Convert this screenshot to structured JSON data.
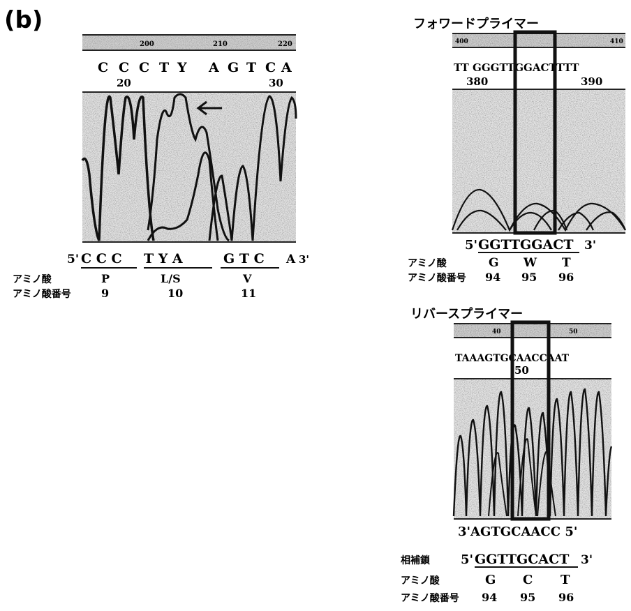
{
  "panel_label": "(b)",
  "left": {
    "ruler_ticks": [
      "200",
      "210",
      "220"
    ],
    "bases": [
      "C",
      "C",
      "C",
      "T",
      "Y",
      "A",
      "G",
      "T",
      "C",
      "A"
    ],
    "positions": [
      "20",
      "30"
    ],
    "seq_prefix": "5'",
    "seq_codons": [
      "C C C",
      "T Y A",
      "G T C"
    ],
    "seq_tail": "A",
    "seq_suffix": "3'",
    "amino_label": "アミノ酸",
    "amino_values": [
      "P",
      "L/S",
      "V"
    ],
    "number_label": "アミノ酸番号",
    "number_values": [
      "9",
      "10",
      "11"
    ]
  },
  "forward": {
    "title": "フォワードプライマー",
    "ruler_ticks": [
      "400",
      "410"
    ],
    "bases_text": "TT GGGTTGGACTTTT",
    "positions": [
      "380",
      "390"
    ],
    "seq_prefix": "5'",
    "seq": "GGTTGGACT",
    "seq_suffix": "3'",
    "amino_label": "アミノ酸",
    "amino_values": [
      "G",
      "W",
      "T"
    ],
    "number_label": "アミノ酸番号",
    "number_values": [
      "94",
      "95",
      "96"
    ]
  },
  "reverse": {
    "title": "リバースプライマー",
    "ruler_ticks": [
      "40",
      "50"
    ],
    "bases_text": "TAAAGTGCAACCAAT",
    "positions": [
      "50"
    ],
    "seq": "3'AGTGCAACC 5'",
    "comp_label": "相補鎖",
    "comp_prefix": "5'",
    "comp_seq": "GGTTGCACT",
    "comp_suffix": "3'",
    "amino_label": "アミノ酸",
    "amino_values": [
      "G",
      "C",
      "T"
    ],
    "number_label": "アミノ酸番号",
    "number_values": [
      "94",
      "95",
      "96"
    ]
  }
}
